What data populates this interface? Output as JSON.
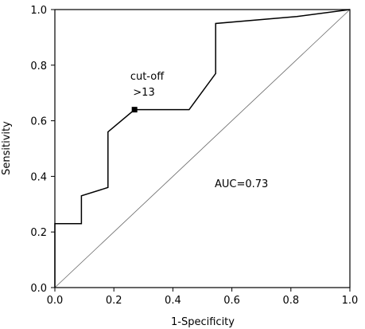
{
  "chart_data": {
    "type": "line",
    "title": "",
    "xlabel": "1-Specificity",
    "ylabel": "Sensitivity",
    "xlim": [
      0.0,
      1.0
    ],
    "ylim": [
      0.0,
      1.0
    ],
    "xticks": [
      0.0,
      0.2,
      0.4,
      0.6,
      0.8,
      1.0
    ],
    "yticks": [
      0.0,
      0.2,
      0.4,
      0.6,
      0.8,
      1.0
    ],
    "xtick_labels": [
      "0.0",
      "0.2",
      "0.4",
      "0.6",
      "0.8",
      "1.0"
    ],
    "ytick_labels": [
      "0.0",
      "0.2",
      "0.4",
      "0.6",
      "0.8",
      "1.0"
    ],
    "grid": false,
    "series": [
      {
        "values_xy": [
          [
            0.0,
            0.0
          ],
          [
            0.0,
            0.23
          ],
          [
            0.09,
            0.23
          ],
          [
            0.09,
            0.33
          ],
          [
            0.18,
            0.36
          ],
          [
            0.18,
            0.56
          ],
          [
            0.27,
            0.64
          ],
          [
            0.455,
            0.64
          ],
          [
            0.545,
            0.77
          ],
          [
            0.545,
            0.95
          ],
          [
            0.82,
            0.975
          ],
          [
            1.0,
            1.0
          ]
        ],
        "color": "#000000"
      },
      {
        "values_xy": [
          [
            0.0,
            0.0
          ],
          [
            1.0,
            1.0
          ]
        ],
        "color": "#666666",
        "style": "reference-diagonal"
      }
    ],
    "cutoff_point": {
      "x": 0.27,
      "y": 0.64
    },
    "annotations": {
      "cutoff_title": "cut-off",
      "cutoff_value": ">13",
      "auc": "AUC=0.73"
    }
  }
}
